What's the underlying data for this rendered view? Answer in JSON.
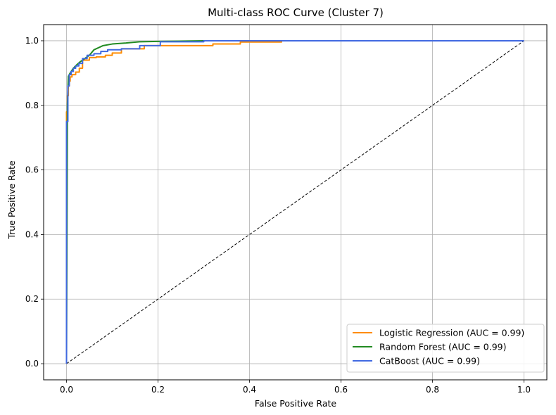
{
  "chart_data": {
    "type": "line",
    "title": "Multi-class ROC Curve (Cluster 7)",
    "xlabel": "False Positive Rate",
    "ylabel": "True Positive Rate",
    "xlim": [
      -0.05,
      1.05
    ],
    "ylim": [
      -0.05,
      1.05
    ],
    "xticks": [
      0.0,
      0.2,
      0.4,
      0.6,
      0.8,
      1.0
    ],
    "yticks": [
      0.0,
      0.2,
      0.4,
      0.6,
      0.8,
      1.0
    ],
    "xtick_labels": [
      "0.0",
      "0.2",
      "0.4",
      "0.6",
      "0.8",
      "1.0"
    ],
    "ytick_labels": [
      "0.0",
      "0.2",
      "0.4",
      "0.6",
      "0.8",
      "1.0"
    ],
    "grid": true,
    "legend_position": "lower-right",
    "series": [
      {
        "name": "Logistic Regression (AUC = 0.99)",
        "color": "#ff8c00",
        "x": [
          0,
          0,
          0.002,
          0.002,
          0.004,
          0.004,
          0.006,
          0.006,
          0.008,
          0.008,
          0.012,
          0.012,
          0.02,
          0.02,
          0.028,
          0.028,
          0.035,
          0.035,
          0.05,
          0.05,
          0.065,
          0.065,
          0.085,
          0.085,
          0.1,
          0.1,
          0.12,
          0.12,
          0.17,
          0.17,
          0.32,
          0.32,
          0.38,
          0.38,
          0.47,
          0.47,
          1.0
        ],
        "y": [
          0,
          0.78,
          0.78,
          0.83,
          0.83,
          0.86,
          0.86,
          0.875,
          0.875,
          0.888,
          0.888,
          0.895,
          0.895,
          0.903,
          0.903,
          0.915,
          0.915,
          0.94,
          0.94,
          0.948,
          0.948,
          0.95,
          0.95,
          0.955,
          0.955,
          0.962,
          0.962,
          0.975,
          0.975,
          0.985,
          0.985,
          0.99,
          0.99,
          0.996,
          0.996,
          1.0,
          1.0
        ]
      },
      {
        "name": "Random Forest (AUC = 0.99)",
        "color": "#228b22",
        "x": [
          0,
          0.002,
          0.004,
          0.008,
          0.015,
          0.022,
          0.03,
          0.04,
          0.05,
          0.06,
          0.08,
          0.1,
          0.13,
          0.16,
          0.2,
          0.3,
          0.4,
          1.0
        ],
        "y": [
          0,
          0.8,
          0.89,
          0.9,
          0.915,
          0.925,
          0.935,
          0.945,
          0.955,
          0.972,
          0.985,
          0.99,
          0.993,
          0.997,
          0.998,
          1.0,
          1.0,
          1.0
        ]
      },
      {
        "name": "CatBoost (AUC = 0.99)",
        "color": "#4169e1",
        "x": [
          0,
          0,
          0.003,
          0.003,
          0.006,
          0.006,
          0.01,
          0.01,
          0.015,
          0.015,
          0.02,
          0.02,
          0.027,
          0.027,
          0.035,
          0.035,
          0.045,
          0.045,
          0.06,
          0.06,
          0.075,
          0.075,
          0.09,
          0.09,
          0.12,
          0.12,
          0.16,
          0.16,
          0.205,
          0.205,
          0.3,
          0.3,
          1.0
        ],
        "y": [
          0,
          0.75,
          0.75,
          0.86,
          0.86,
          0.895,
          0.895,
          0.905,
          0.905,
          0.915,
          0.915,
          0.922,
          0.922,
          0.93,
          0.93,
          0.945,
          0.945,
          0.955,
          0.955,
          0.96,
          0.96,
          0.967,
          0.967,
          0.972,
          0.972,
          0.975,
          0.975,
          0.985,
          0.985,
          0.997,
          0.997,
          1.0,
          1.0
        ]
      }
    ],
    "reference_line": {
      "x": [
        0,
        1
      ],
      "y": [
        0,
        1
      ],
      "color": "#000000",
      "style": "dashed"
    }
  }
}
